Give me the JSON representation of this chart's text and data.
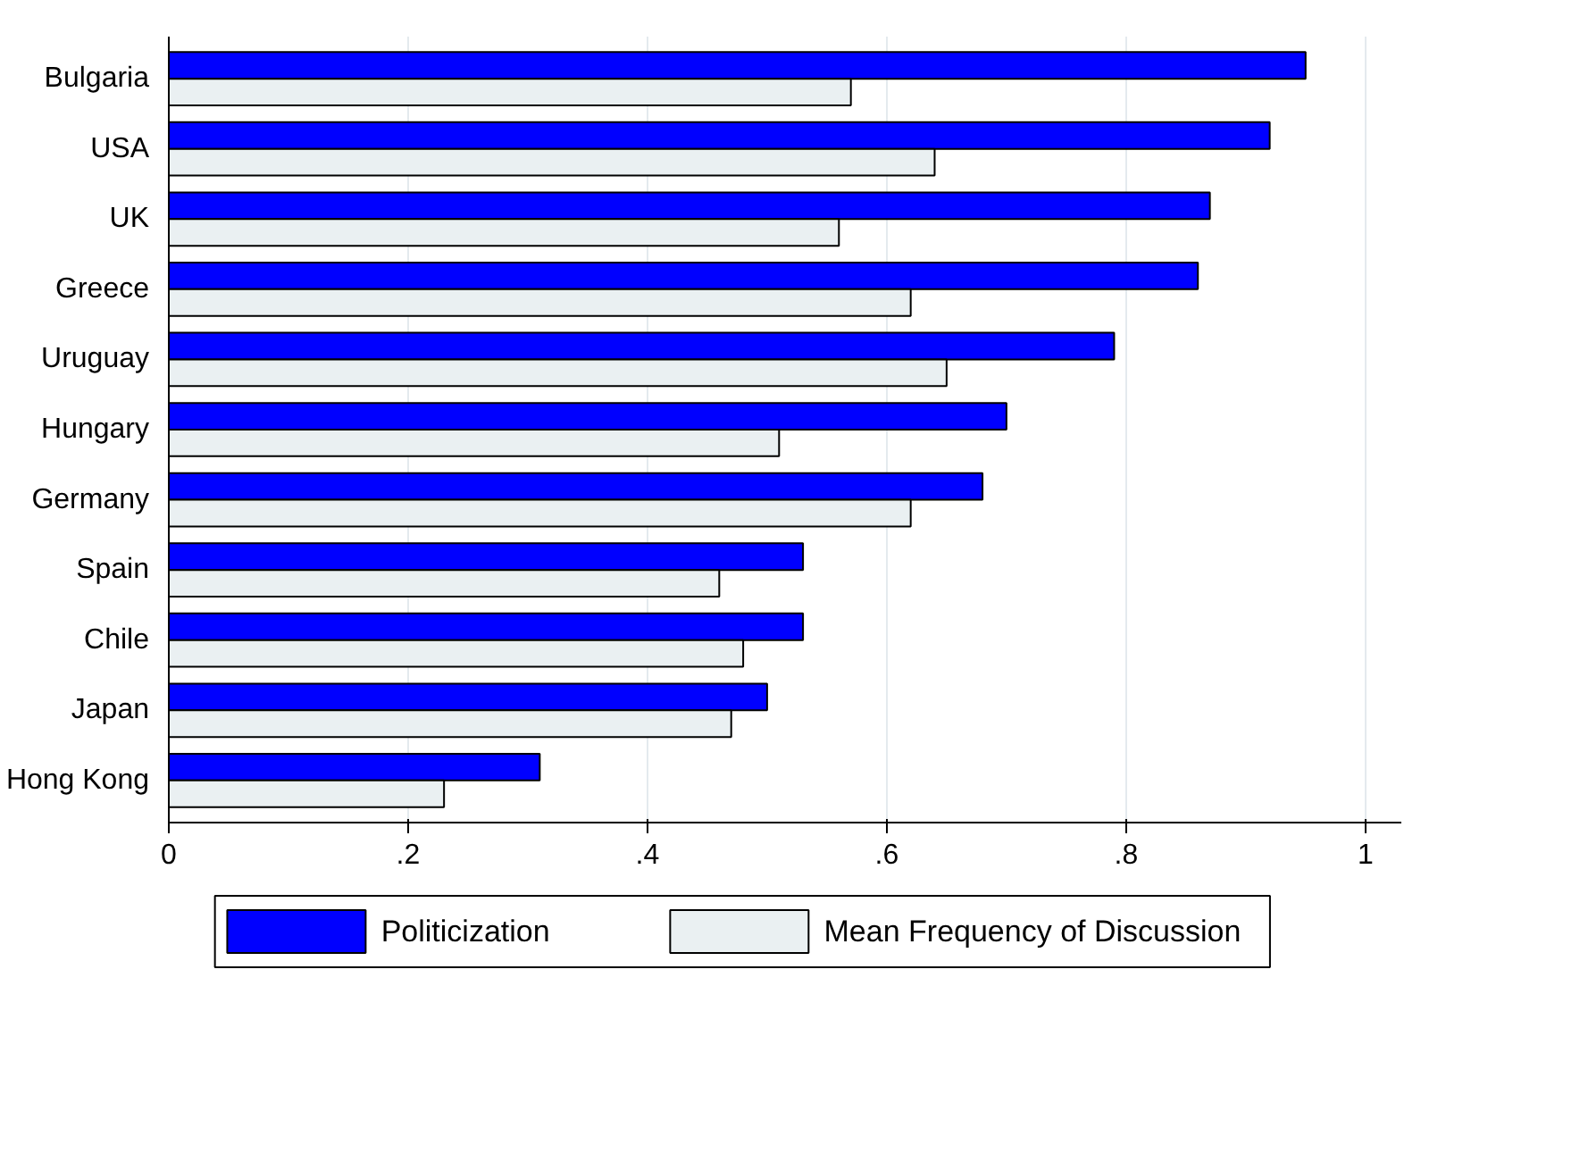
{
  "chart_data": {
    "type": "bar",
    "orientation": "horizontal",
    "categories": [
      "Bulgaria",
      "USA",
      "UK",
      "Greece",
      "Uruguay",
      "Hungary",
      "Germany",
      "Spain",
      "Chile",
      "Japan",
      "Hong Kong"
    ],
    "series": [
      {
        "name": "Politicization",
        "color": "#0000ff",
        "values": [
          0.95,
          0.92,
          0.87,
          0.86,
          0.79,
          0.7,
          0.68,
          0.53,
          0.53,
          0.5,
          0.31
        ]
      },
      {
        "name": "Mean Frequency of Discussion",
        "color": "#eaf0f2",
        "values": [
          0.57,
          0.64,
          0.56,
          0.62,
          0.65,
          0.51,
          0.62,
          0.46,
          0.48,
          0.47,
          0.23
        ]
      }
    ],
    "xlim": [
      0,
      1.03
    ],
    "xticks": [
      0,
      {
        "value": 0.2,
        "label": ".2"
      },
      {
        "value": 0.4,
        "label": ".4"
      },
      {
        "value": 0.6,
        "label": ".6"
      },
      {
        "value": 0.8,
        "label": ".8"
      },
      1
    ],
    "grid": "x",
    "legend": "bottom"
  }
}
